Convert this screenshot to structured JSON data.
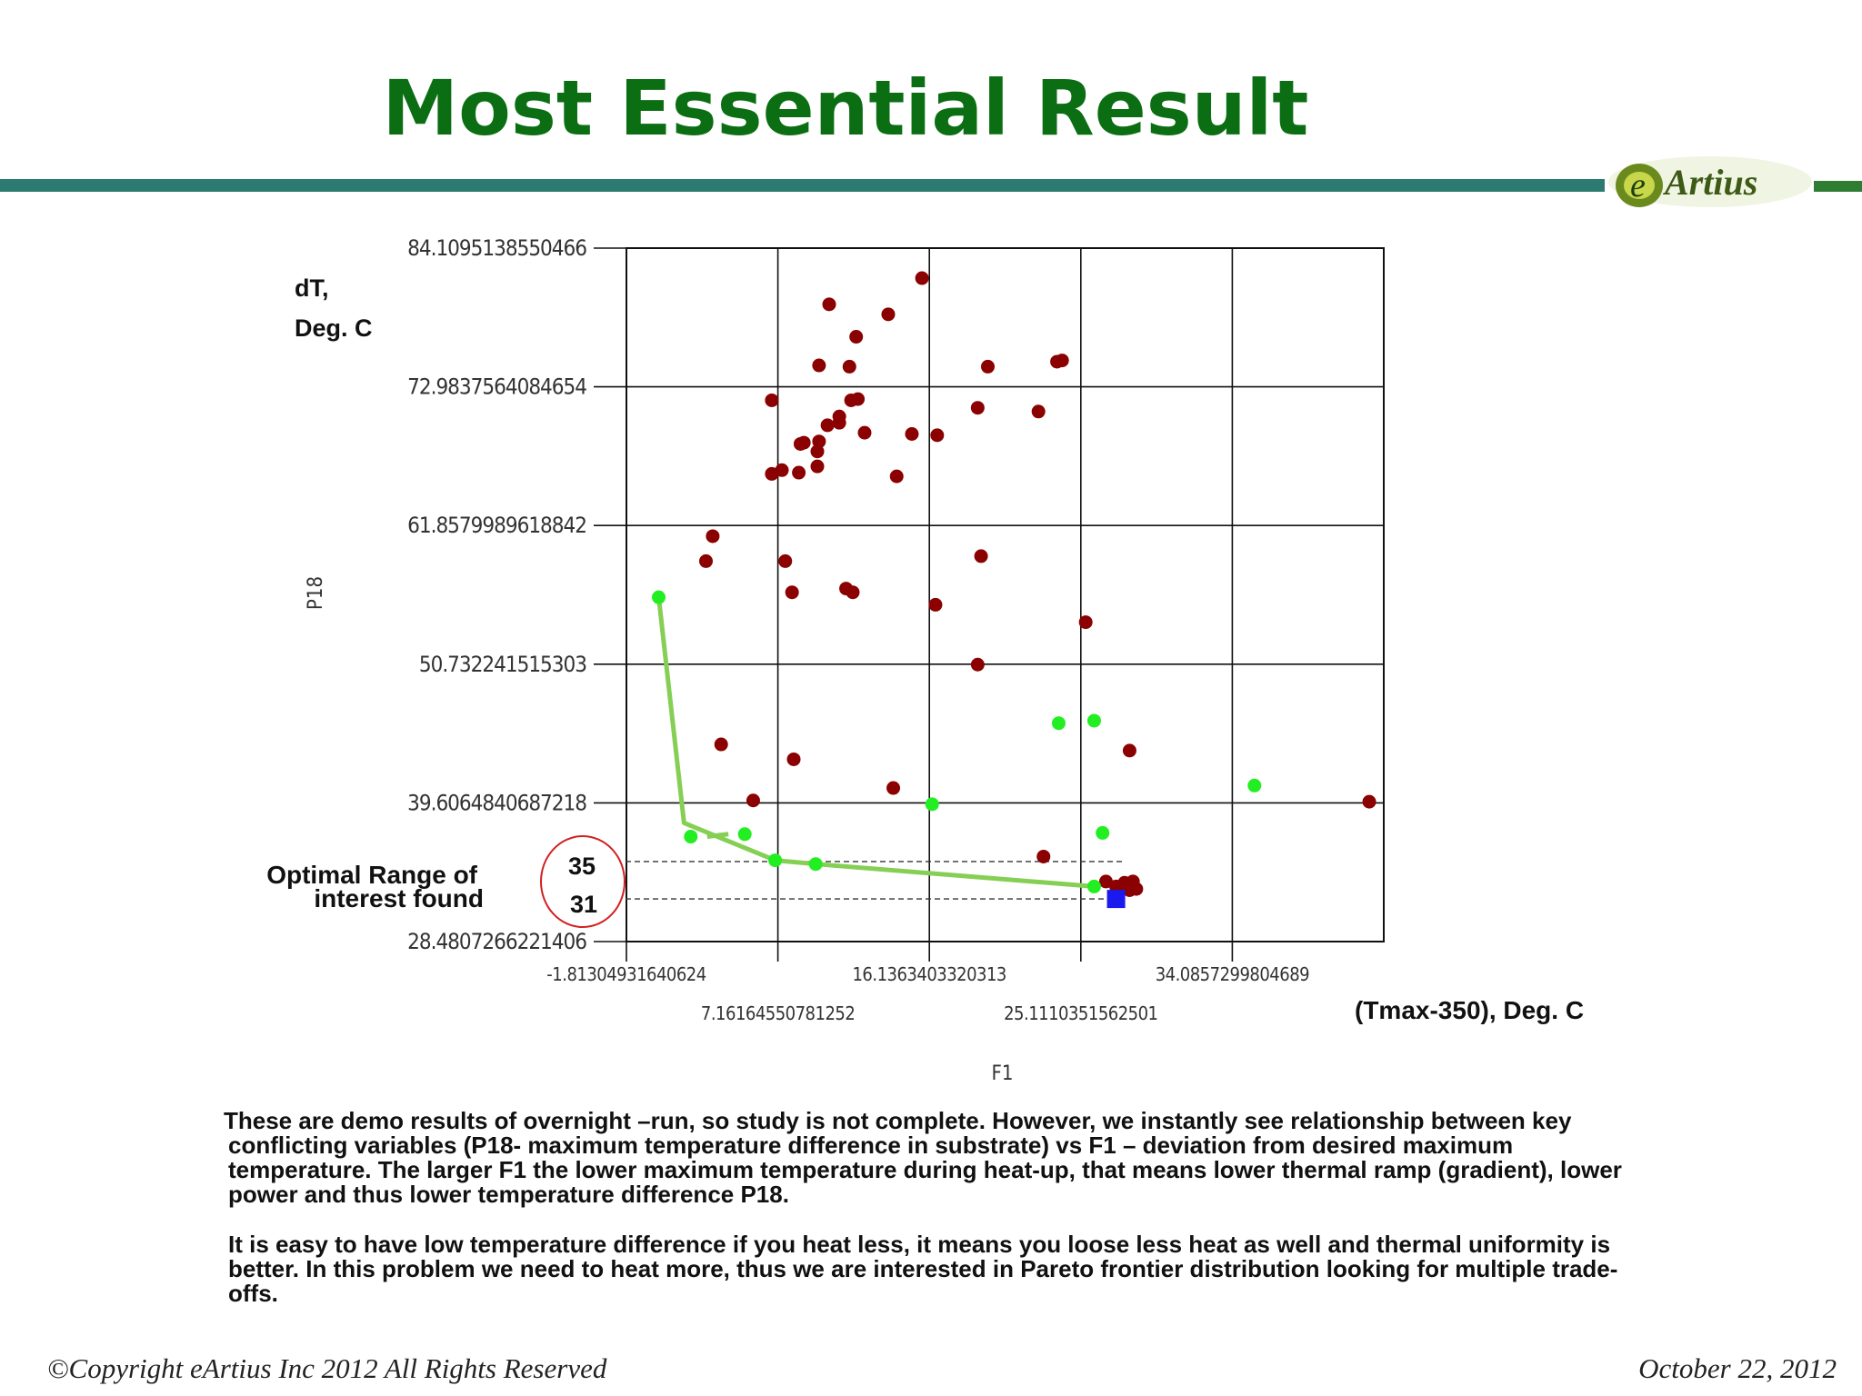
{
  "slide": {
    "title": "Most Essential Result",
    "logo_text": "eArtius"
  },
  "labels": {
    "y_unit_line1": "dT,",
    "y_unit_line2": "Deg. C",
    "x_unit": "(Tmax-350), Deg. C",
    "optimal_line1": "Optimal Range of",
    "optimal_line2": "interest found",
    "circle_upper": "35",
    "circle_lower": "31"
  },
  "paragraphs": {
    "p1_l1": "These are demo results of overnight –run, so study is not complete. However, we instantly see relationship between key",
    "p1_l2": "conflicting variables (P18- maximum temperature difference in substrate) vs F1 – deviation from desired maximum",
    "p1_l3": "temperature.   The larger F1 the lower maximum temperature  during heat-up, that means lower thermal ramp (gradient), lower",
    "p1_l4": "power and thus lower temperature difference P18.",
    "p2_l1": "It is easy to have low temperature difference if you heat less, it means you loose less heat as well and thermal uniformity is",
    "p2_l2": "better. In this problem we need to heat more, thus we are interested in Pareto frontier distribution looking for multiple trade-",
    "p2_l3": "offs."
  },
  "footer": {
    "copyright": "©Copyright eArtius Inc 2012 All Rights Reserved",
    "date": "October 22, 2012"
  },
  "colors": {
    "title": "#0b6e13",
    "rule": "#2d7a70",
    "dominated_point": "#8b0000",
    "pareto_point": "#22ee22",
    "pareto_line": "#86cf55",
    "best_point": "#1a1aee",
    "circle": "#d22020"
  },
  "chart_data": {
    "type": "scatter",
    "xlabel": "F1",
    "ylabel": "P18",
    "xlim": [
      -1.81304931640624,
      43.0604248046877
    ],
    "ylim": [
      28.4807266221406,
      84.1095138550466
    ],
    "x_ticks": [
      "-1.81304931640624",
      "7.16164550781252",
      "16.1363403320313",
      "25.1110351562501",
      "34.0857299804689"
    ],
    "x_tick_values": [
      -1.81304931640624,
      7.16164550781252,
      16.1363403320313,
      25.1110351562501,
      34.0857299804689
    ],
    "y_ticks": [
      "84.1095138550466",
      "72.9837564084654",
      "61.8579989618842",
      "50.732241515303",
      "39.6064840687218",
      "28.4807266221406"
    ],
    "y_tick_values": [
      84.1095138550466,
      72.9837564084654,
      61.8579989618842,
      50.732241515303,
      39.6064840687218,
      28.4807266221406
    ],
    "grid": true,
    "series": [
      {
        "points": [
          [
            15.7,
            81.7
          ],
          [
            10.2,
            79.6
          ],
          [
            13.7,
            78.8
          ],
          [
            11.8,
            77.0
          ],
          [
            9.6,
            74.7
          ],
          [
            11.4,
            74.6
          ],
          [
            19.6,
            74.6
          ],
          [
            23.7,
            75.0
          ],
          [
            24.0,
            75.1
          ],
          [
            6.8,
            71.9
          ],
          [
            11.5,
            71.9
          ],
          [
            11.9,
            72.0
          ],
          [
            19.0,
            71.3
          ],
          [
            22.6,
            71.0
          ],
          [
            10.8,
            70.6
          ],
          [
            10.1,
            69.9
          ],
          [
            10.8,
            70.1
          ],
          [
            12.3,
            69.3
          ],
          [
            15.1,
            69.2
          ],
          [
            16.6,
            69.1
          ],
          [
            8.7,
            68.5
          ],
          [
            8.5,
            68.4
          ],
          [
            9.6,
            68.6
          ],
          [
            9.5,
            67.8
          ],
          [
            9.5,
            66.6
          ],
          [
            6.8,
            66.0
          ],
          [
            7.4,
            66.3
          ],
          [
            8.4,
            66.1
          ],
          [
            14.2,
            65.8
          ],
          [
            3.3,
            61.0
          ],
          [
            2.9,
            59.0
          ],
          [
            7.6,
            59.0
          ],
          [
            8.0,
            56.5
          ],
          [
            11.2,
            56.8
          ],
          [
            11.6,
            56.5
          ],
          [
            16.5,
            55.5
          ],
          [
            19.2,
            59.4
          ],
          [
            25.4,
            54.1
          ],
          [
            19.0,
            50.7
          ],
          [
            3.8,
            44.3
          ],
          [
            8.1,
            43.1
          ],
          [
            14.0,
            40.8
          ],
          [
            5.7,
            39.8
          ],
          [
            28.0,
            43.8
          ],
          [
            42.2,
            39.7
          ],
          [
            22.9,
            35.3
          ],
          [
            26.6,
            33.3
          ],
          [
            27.2,
            32.9
          ],
          [
            27.7,
            33.2
          ],
          [
            28.2,
            33.3
          ],
          [
            28.4,
            32.7
          ],
          [
            27.6,
            32.8
          ],
          [
            28.0,
            32.6
          ]
        ]
      },
      {
        "points": [
          [
            0.1,
            56.1
          ],
          [
            16.3,
            39.5
          ],
          [
            23.8,
            46.0
          ],
          [
            25.9,
            46.2
          ],
          [
            35.4,
            41.0
          ],
          [
            26.4,
            37.2
          ],
          [
            2.0,
            36.9
          ],
          [
            5.2,
            37.1
          ],
          [
            7.0,
            35.0
          ],
          [
            9.4,
            34.7
          ],
          [
            25.9,
            32.9
          ]
        ]
      },
      {
        "points": [
          [
            27.2,
            31.9
          ]
        ]
      }
    ],
    "pareto_path": [
      [
        0.1,
        56.1
      ],
      [
        1.6,
        38.0
      ],
      [
        7.0,
        35.0
      ],
      [
        9.4,
        34.7
      ],
      [
        25.9,
        32.9
      ]
    ],
    "pareto_path_gaps": [
      [
        2.0,
        36.9
      ],
      [
        5.2,
        37.1
      ]
    ],
    "reference_lines": [
      34.9,
      31.9
    ]
  }
}
